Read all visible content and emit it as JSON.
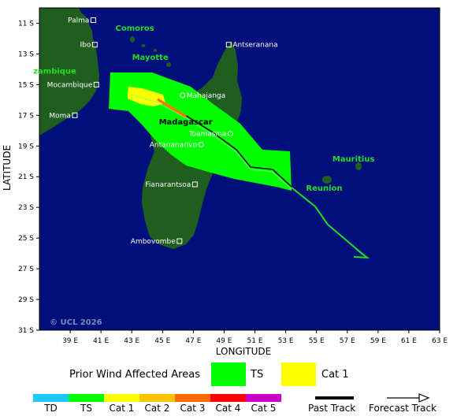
{
  "map": {
    "ocean_color": "#00107a",
    "land_color": "#1f5e1f",
    "copyright": "© UCL 2026",
    "axis_labels": {
      "x": "LONGITUDE",
      "y": "LATITUDE"
    },
    "lat_ticks": [
      "11 S",
      "13 S",
      "15 S",
      "17 S",
      "19 S",
      "21 S",
      "23 S",
      "25 S",
      "27 S",
      "29 S",
      "31 S"
    ],
    "lon_ticks": [
      "39 E",
      "41 E",
      "43 E",
      "45 E",
      "47 E",
      "49 E",
      "51 E",
      "53 E",
      "55 E",
      "57 E",
      "59 E",
      "61 E",
      "63 E"
    ],
    "places": [
      {
        "name": "Palma",
        "lon": 40.5,
        "lat": -10.8
      },
      {
        "name": "Ibo",
        "lon": 40.6,
        "lat": -12.4
      },
      {
        "name": "Mocambique",
        "lon": 40.7,
        "lat": -15.0
      },
      {
        "name": "Moma",
        "lon": 39.3,
        "lat": -17.0
      },
      {
        "name": "Antseranana",
        "lon": 49.3,
        "lat": -12.4
      },
      {
        "name": "Mahajanga",
        "lon": 46.3,
        "lat": -15.7
      },
      {
        "name": "Toamasina",
        "lon": 49.4,
        "lat": -18.2
      },
      {
        "name": "Antananarivo",
        "lon": 47.5,
        "lat": -18.9
      },
      {
        "name": "Fianarantsoa",
        "lon": 47.1,
        "lat": -21.5
      },
      {
        "name": "Ambovombe",
        "lon": 46.1,
        "lat": -25.2
      }
    ],
    "regions": [
      {
        "name": "Comoros",
        "lon": 43.2,
        "lat": -11.5
      },
      {
        "name": "Mayotte",
        "lon": 44.2,
        "lat": -13.4
      },
      {
        "name": "zambique",
        "lon": 38.0,
        "lat": -14.3
      },
      {
        "name": "Mauritius",
        "lon": 57.4,
        "lat": -20.0
      },
      {
        "name": "Reunion",
        "lon": 55.5,
        "lat": -21.9
      }
    ],
    "country_label": {
      "name": "Madagascar",
      "lon": 46.5,
      "lat": -17.6
    },
    "track_colors": {
      "past": "#ff7700",
      "forecast": "#22dd22"
    }
  },
  "legend": {
    "prior_wind_title": "Prior Wind Affected Areas",
    "areas": [
      {
        "label": "TS",
        "color": "#00ff00"
      },
      {
        "label": "Cat 1",
        "color": "#ffff00"
      }
    ],
    "categories": [
      {
        "label": "TD",
        "color": "#1ec8ff"
      },
      {
        "label": "TS",
        "color": "#00ff00"
      },
      {
        "label": "Cat 1",
        "color": "#ffff00"
      },
      {
        "label": "Cat 2",
        "color": "#ffc400"
      },
      {
        "label": "Cat 3",
        "color": "#ff6a00"
      },
      {
        "label": "Cat 4",
        "color": "#ff0000"
      },
      {
        "label": "Cat 5",
        "color": "#c800c8"
      }
    ],
    "past_track_label": "Past Track",
    "forecast_track_label": "Forecast Track"
  }
}
